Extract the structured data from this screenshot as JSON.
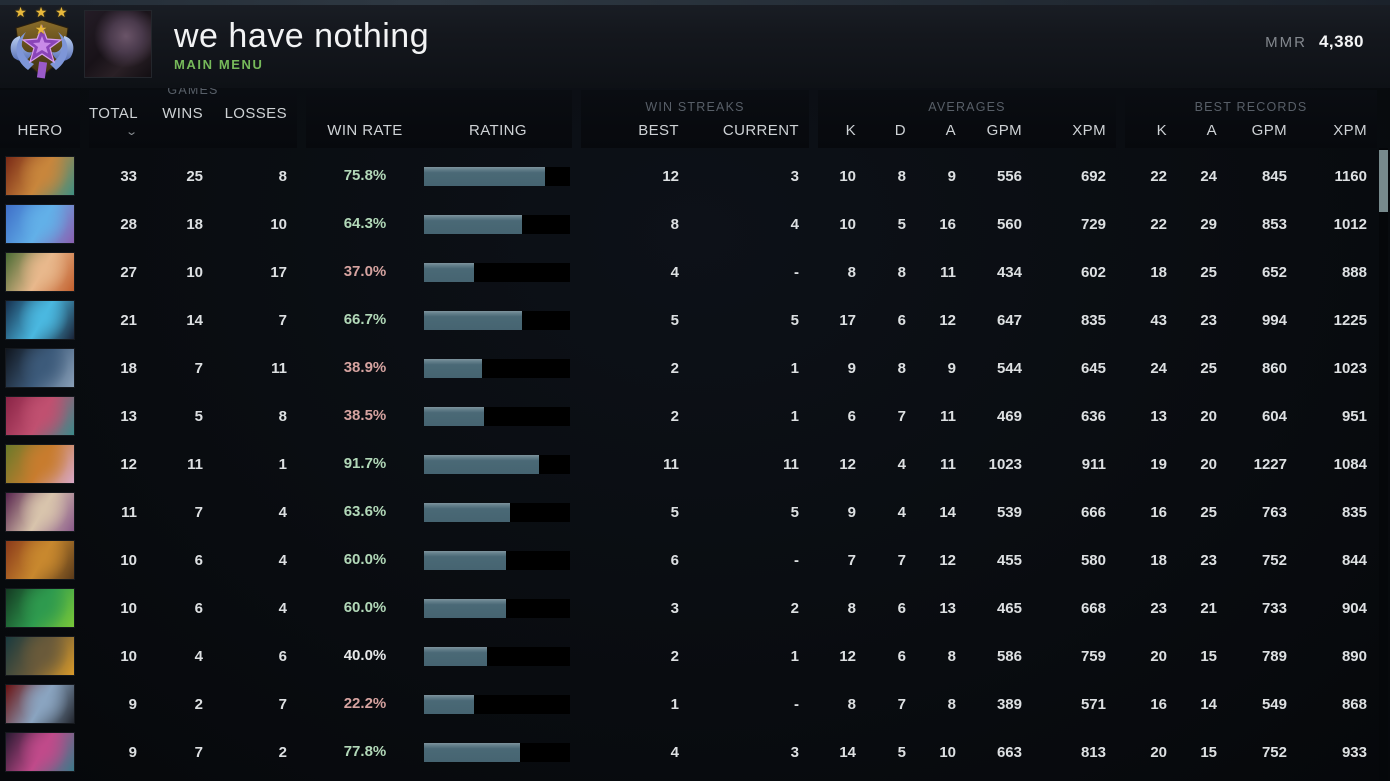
{
  "topbar": {
    "title": "we have nothing",
    "subtitle": "MAIN MENU",
    "mmr_label": "MMR",
    "mmr_value": "4,380",
    "rank_stars": "★ ★ ★ ★"
  },
  "table": {
    "groups": {
      "games": "GAMES",
      "win_streaks": "WIN STREAKS",
      "averages": "AVERAGES",
      "best_records": "BEST RECORDS"
    },
    "columns": {
      "hero": "HERO",
      "total": "TOTAL",
      "wins": "WINS",
      "losses": "LOSSES",
      "win_rate": "WIN RATE",
      "rating": "RATING",
      "best": "BEST",
      "current": "CURRENT",
      "k": "K",
      "d": "D",
      "a": "A",
      "gpm": "GPM",
      "xpm": "XPM"
    },
    "rows": [
      {
        "total": "33",
        "wins": "25",
        "losses": "8",
        "win_rate": "75.8%",
        "win_rate_color": "green",
        "rating": 0.83,
        "streak_best": "12",
        "streak_current": "3",
        "avg_k": "10",
        "avg_d": "8",
        "avg_a": "9",
        "avg_gpm": "556",
        "avg_xpm": "692",
        "rec_k": "22",
        "rec_a": "24",
        "rec_gpm": "845",
        "rec_xpm": "1160",
        "portrait": [
          "#7a2a16",
          "#c8863c",
          "#3e8f82"
        ]
      },
      {
        "total": "28",
        "wins": "18",
        "losses": "10",
        "win_rate": "64.3%",
        "win_rate_color": "green",
        "rating": 0.67,
        "streak_best": "8",
        "streak_current": "4",
        "avg_k": "10",
        "avg_d": "5",
        "avg_a": "16",
        "avg_gpm": "560",
        "avg_xpm": "729",
        "rec_k": "22",
        "rec_a": "29",
        "rec_gpm": "853",
        "rec_xpm": "1012",
        "portrait": [
          "#3f6fc8",
          "#62b0e8",
          "#8a5fb0"
        ]
      },
      {
        "total": "27",
        "wins": "10",
        "losses": "17",
        "win_rate": "37.0%",
        "win_rate_color": "red",
        "rating": 0.34,
        "streak_best": "4",
        "streak_current": "-",
        "avg_k": "8",
        "avg_d": "8",
        "avg_a": "11",
        "avg_gpm": "434",
        "avg_xpm": "602",
        "rec_k": "18",
        "rec_a": "25",
        "rec_gpm": "652",
        "rec_xpm": "888",
        "portrait": [
          "#4a6b34",
          "#e8b88c",
          "#c2602e"
        ]
      },
      {
        "total": "21",
        "wins": "14",
        "losses": "7",
        "win_rate": "66.7%",
        "win_rate_color": "green",
        "rating": 0.67,
        "streak_best": "5",
        "streak_current": "5",
        "avg_k": "17",
        "avg_d": "6",
        "avg_a": "12",
        "avg_gpm": "647",
        "avg_xpm": "835",
        "rec_k": "43",
        "rec_a": "23",
        "rec_gpm": "994",
        "rec_xpm": "1225",
        "portrait": [
          "#16304e",
          "#4ab8e0",
          "#1a2438"
        ]
      },
      {
        "total": "18",
        "wins": "7",
        "losses": "11",
        "win_rate": "38.9%",
        "win_rate_color": "red",
        "rating": 0.4,
        "streak_best": "2",
        "streak_current": "1",
        "avg_k": "9",
        "avg_d": "8",
        "avg_a": "9",
        "avg_gpm": "544",
        "avg_xpm": "645",
        "rec_k": "24",
        "rec_a": "25",
        "rec_gpm": "860",
        "rec_xpm": "1023",
        "portrait": [
          "#10161f",
          "#3c5a7a",
          "#8aa0b8"
        ]
      },
      {
        "total": "13",
        "wins": "5",
        "losses": "8",
        "win_rate": "38.5%",
        "win_rate_color": "red",
        "rating": 0.41,
        "streak_best": "2",
        "streak_current": "1",
        "avg_k": "6",
        "avg_d": "7",
        "avg_a": "11",
        "avg_gpm": "469",
        "avg_xpm": "636",
        "rec_k": "13",
        "rec_a": "20",
        "rec_gpm": "604",
        "rec_xpm": "951",
        "portrait": [
          "#8a2446",
          "#c05070",
          "#3a8a8a"
        ]
      },
      {
        "total": "12",
        "wins": "11",
        "losses": "1",
        "win_rate": "91.7%",
        "win_rate_color": "green",
        "rating": 0.79,
        "streak_best": "11",
        "streak_current": "11",
        "avg_k": "12",
        "avg_d": "4",
        "avg_a": "11",
        "avg_gpm": "1023",
        "avg_xpm": "911",
        "rec_k": "19",
        "rec_a": "20",
        "rec_gpm": "1227",
        "rec_xpm": "1084",
        "portrait": [
          "#6a7a2a",
          "#c87c2e",
          "#d8a8c8"
        ]
      },
      {
        "total": "11",
        "wins": "7",
        "losses": "4",
        "win_rate": "63.6%",
        "win_rate_color": "green",
        "rating": 0.59,
        "streak_best": "5",
        "streak_current": "5",
        "avg_k": "9",
        "avg_d": "4",
        "avg_a": "14",
        "avg_gpm": "539",
        "avg_xpm": "666",
        "rec_k": "16",
        "rec_a": "25",
        "rec_gpm": "763",
        "rec_xpm": "835",
        "portrait": [
          "#58254e",
          "#d8c4ac",
          "#8a5a8a"
        ]
      },
      {
        "total": "10",
        "wins": "6",
        "losses": "4",
        "win_rate": "60.0%",
        "win_rate_color": "green",
        "rating": 0.56,
        "streak_best": "6",
        "streak_current": "-",
        "avg_k": "7",
        "avg_d": "7",
        "avg_a": "12",
        "avg_gpm": "455",
        "avg_xpm": "580",
        "rec_k": "18",
        "rec_a": "23",
        "rec_gpm": "752",
        "rec_xpm": "844",
        "portrait": [
          "#8a3a1a",
          "#c8882e",
          "#5a3a1a"
        ]
      },
      {
        "total": "10",
        "wins": "6",
        "losses": "4",
        "win_rate": "60.0%",
        "win_rate_color": "green",
        "rating": 0.56,
        "streak_best": "3",
        "streak_current": "2",
        "avg_k": "8",
        "avg_d": "6",
        "avg_a": "13",
        "avg_gpm": "465",
        "avg_xpm": "668",
        "rec_k": "23",
        "rec_a": "21",
        "rec_gpm": "733",
        "rec_xpm": "904",
        "portrait": [
          "#143a22",
          "#2e9a4e",
          "#7ac838"
        ]
      },
      {
        "total": "10",
        "wins": "4",
        "losses": "6",
        "win_rate": "40.0%",
        "win_rate_color": "neutral",
        "rating": 0.43,
        "streak_best": "2",
        "streak_current": "1",
        "avg_k": "12",
        "avg_d": "6",
        "avg_a": "8",
        "avg_gpm": "586",
        "avg_xpm": "759",
        "rec_k": "20",
        "rec_a": "15",
        "rec_gpm": "789",
        "rec_xpm": "890",
        "portrait": [
          "#1a3a3e",
          "#6a5a3a",
          "#d89a2a"
        ]
      },
      {
        "total": "9",
        "wins": "2",
        "losses": "7",
        "win_rate": "22.2%",
        "win_rate_color": "red",
        "rating": 0.34,
        "streak_best": "1",
        "streak_current": "-",
        "avg_k": "8",
        "avg_d": "7",
        "avg_a": "8",
        "avg_gpm": "389",
        "avg_xpm": "571",
        "rec_k": "16",
        "rec_a": "14",
        "rec_gpm": "549",
        "rec_xpm": "868",
        "portrait": [
          "#6a1212",
          "#8aa4c0",
          "#22262e"
        ]
      },
      {
        "total": "9",
        "wins": "7",
        "losses": "2",
        "win_rate": "77.8%",
        "win_rate_color": "green",
        "rating": 0.66,
        "streak_best": "4",
        "streak_current": "3",
        "avg_k": "14",
        "avg_d": "5",
        "avg_a": "10",
        "avg_gpm": "663",
        "avg_xpm": "813",
        "rec_k": "20",
        "rec_a": "15",
        "rec_gpm": "752",
        "rec_xpm": "933",
        "portrait": [
          "#2a1a32",
          "#c04a8a",
          "#3a7a8a"
        ]
      }
    ]
  },
  "colors": {
    "bar_fill": "#4a6976",
    "win_green": "#b2d8b8",
    "lose_red": "#d6a3a0",
    "neutral_white": "#e6e8e9",
    "subtitle_green": "#76b95a"
  }
}
